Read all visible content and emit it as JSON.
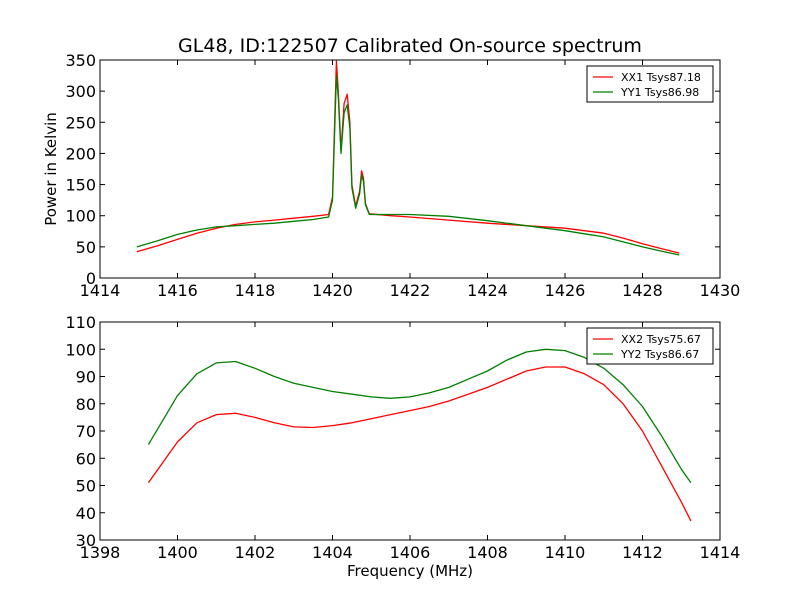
{
  "title": "GL48, ID:122507 Calibrated On-source spectrum",
  "chart_data": [
    {
      "type": "line",
      "title": "GL48, ID:122507 Calibrated On-source spectrum",
      "xlabel": "",
      "ylabel": "Power in Kelvin",
      "xlim": [
        1414,
        1430
      ],
      "ylim": [
        0,
        350
      ],
      "xticks": [
        1414,
        1416,
        1418,
        1420,
        1422,
        1424,
        1426,
        1428,
        1430
      ],
      "yticks": [
        0,
        50,
        100,
        150,
        200,
        250,
        300,
        350
      ],
      "grid": false,
      "legend": "top-right",
      "series": [
        {
          "name": "XX1 Tsys87.18",
          "color": "#ff0000",
          "points": [
            [
              1414.95,
              42
            ],
            [
              1415.5,
              52
            ],
            [
              1416,
              62
            ],
            [
              1416.5,
              72
            ],
            [
              1417,
              80
            ],
            [
              1417.5,
              86
            ],
            [
              1418,
              90
            ],
            [
              1418.5,
              93
            ],
            [
              1419,
              96
            ],
            [
              1419.5,
              99
            ],
            [
              1419.9,
              102
            ],
            [
              1420.0,
              130
            ],
            [
              1420.1,
              348
            ],
            [
              1420.15,
              300
            ],
            [
              1420.22,
              205
            ],
            [
              1420.3,
              280
            ],
            [
              1420.38,
              295
            ],
            [
              1420.45,
              250
            ],
            [
              1420.5,
              150
            ],
            [
              1420.6,
              115
            ],
            [
              1420.7,
              140
            ],
            [
              1420.75,
              172
            ],
            [
              1420.8,
              160
            ],
            [
              1420.85,
              120
            ],
            [
              1420.95,
              103
            ],
            [
              1421.5,
              100
            ],
            [
              1422,
              98
            ],
            [
              1423,
              93
            ],
            [
              1424,
              88
            ],
            [
              1425,
              84
            ],
            [
              1426,
              80
            ],
            [
              1426.5,
              76
            ],
            [
              1427,
              72
            ],
            [
              1427.5,
              64
            ],
            [
              1428,
              55
            ],
            [
              1428.5,
              47
            ],
            [
              1428.95,
              40
            ]
          ]
        },
        {
          "name": "YY1 Tsys86.98",
          "color": "#008000",
          "points": [
            [
              1414.95,
              50
            ],
            [
              1415.5,
              60
            ],
            [
              1416,
              70
            ],
            [
              1416.5,
              77
            ],
            [
              1417,
              82
            ],
            [
              1417.5,
              84
            ],
            [
              1418,
              86
            ],
            [
              1418.5,
              88
            ],
            [
              1419,
              91
            ],
            [
              1419.5,
              94
            ],
            [
              1419.9,
              98
            ],
            [
              1420.0,
              125
            ],
            [
              1420.1,
              325
            ],
            [
              1420.15,
              290
            ],
            [
              1420.22,
              200
            ],
            [
              1420.3,
              265
            ],
            [
              1420.38,
              278
            ],
            [
              1420.45,
              240
            ],
            [
              1420.5,
              145
            ],
            [
              1420.6,
              112
            ],
            [
              1420.7,
              135
            ],
            [
              1420.75,
              165
            ],
            [
              1420.8,
              155
            ],
            [
              1420.85,
              118
            ],
            [
              1420.95,
              102
            ],
            [
              1421.5,
              102
            ],
            [
              1422,
              102
            ],
            [
              1423,
              99
            ],
            [
              1424,
              92
            ],
            [
              1425,
              84
            ],
            [
              1426,
              76
            ],
            [
              1426.5,
              71
            ],
            [
              1427,
              66
            ],
            [
              1427.5,
              58
            ],
            [
              1428,
              50
            ],
            [
              1428.5,
              43
            ],
            [
              1428.95,
              37
            ]
          ]
        }
      ]
    },
    {
      "type": "line",
      "title": "",
      "xlabel": "Frequency (MHz)",
      "ylabel": "",
      "xlim": [
        1398,
        1414
      ],
      "ylim": [
        30,
        110
      ],
      "xticks": [
        1398,
        1400,
        1402,
        1404,
        1406,
        1408,
        1410,
        1412,
        1414
      ],
      "yticks": [
        30,
        40,
        50,
        60,
        70,
        80,
        90,
        100,
        110
      ],
      "grid": false,
      "legend": "top-right",
      "series": [
        {
          "name": "XX2 Tsys75.67",
          "color": "#ff0000",
          "points": [
            [
              1399.25,
              51
            ],
            [
              1399.5,
              56
            ],
            [
              1400,
              66
            ],
            [
              1400.5,
              73
            ],
            [
              1401,
              76
            ],
            [
              1401.5,
              76.5
            ],
            [
              1402,
              75
            ],
            [
              1402.5,
              73
            ],
            [
              1403,
              71.5
            ],
            [
              1403.5,
              71.3
            ],
            [
              1404,
              72
            ],
            [
              1404.5,
              73
            ],
            [
              1405,
              74.5
            ],
            [
              1405.5,
              76
            ],
            [
              1406,
              77.5
            ],
            [
              1406.5,
              79
            ],
            [
              1407,
              81
            ],
            [
              1407.5,
              83.5
            ],
            [
              1408,
              86
            ],
            [
              1408.5,
              89
            ],
            [
              1409,
              92
            ],
            [
              1409.5,
              93.5
            ],
            [
              1410,
              93.5
            ],
            [
              1410.5,
              91
            ],
            [
              1411,
              87
            ],
            [
              1411.5,
              80
            ],
            [
              1412,
              70
            ],
            [
              1412.5,
              57
            ],
            [
              1413,
              44
            ],
            [
              1413.25,
              37
            ]
          ]
        },
        {
          "name": "YY2 Tsys86.67",
          "color": "#008000",
          "points": [
            [
              1399.25,
              65
            ],
            [
              1399.5,
              71
            ],
            [
              1400,
              83
            ],
            [
              1400.5,
              91
            ],
            [
              1401,
              95
            ],
            [
              1401.5,
              95.5
            ],
            [
              1402,
              93
            ],
            [
              1402.5,
              90
            ],
            [
              1403,
              87.5
            ],
            [
              1403.5,
              86
            ],
            [
              1404,
              84.5
            ],
            [
              1404.5,
              83.5
            ],
            [
              1405,
              82.5
            ],
            [
              1405.5,
              82
            ],
            [
              1406,
              82.5
            ],
            [
              1406.5,
              84
            ],
            [
              1407,
              86
            ],
            [
              1407.5,
              89
            ],
            [
              1408,
              92
            ],
            [
              1408.5,
              96
            ],
            [
              1409,
              99
            ],
            [
              1409.5,
              100
            ],
            [
              1410,
              99.5
            ],
            [
              1410.5,
              97
            ],
            [
              1411,
              93
            ],
            [
              1411.5,
              87
            ],
            [
              1412,
              79
            ],
            [
              1412.5,
              68
            ],
            [
              1413,
              56
            ],
            [
              1413.25,
              51
            ]
          ]
        }
      ]
    }
  ]
}
